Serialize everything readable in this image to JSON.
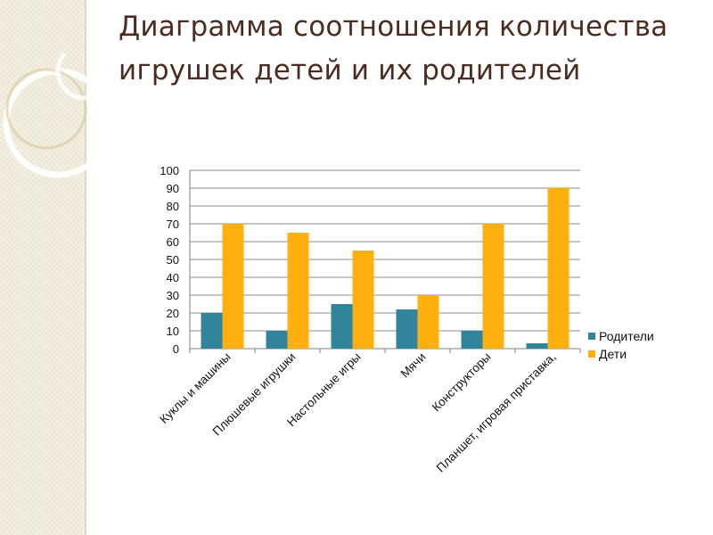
{
  "slide": {
    "title": "Диаграмма соотношения количества игрушек детей и их родителей"
  },
  "chart_data": {
    "type": "bar",
    "title": "",
    "xlabel": "",
    "ylabel": "",
    "ylim": [
      0,
      100
    ],
    "yticks": [
      0,
      10,
      20,
      30,
      40,
      50,
      60,
      70,
      80,
      90,
      100
    ],
    "grid": true,
    "legend_position": "right",
    "categories": [
      "Куклы и машины",
      "Плюшевые игрушки",
      "Настольные игры",
      "Мячи",
      "Конструкторы",
      "Планшет, игровая приставка,"
    ],
    "series": [
      {
        "name": "Родители",
        "color": "#31849b",
        "values": [
          20,
          10,
          25,
          22,
          10,
          3
        ]
      },
      {
        "name": "Дети",
        "color": "#ffb00f",
        "values": [
          70,
          65,
          55,
          30,
          70,
          90
        ]
      }
    ]
  }
}
